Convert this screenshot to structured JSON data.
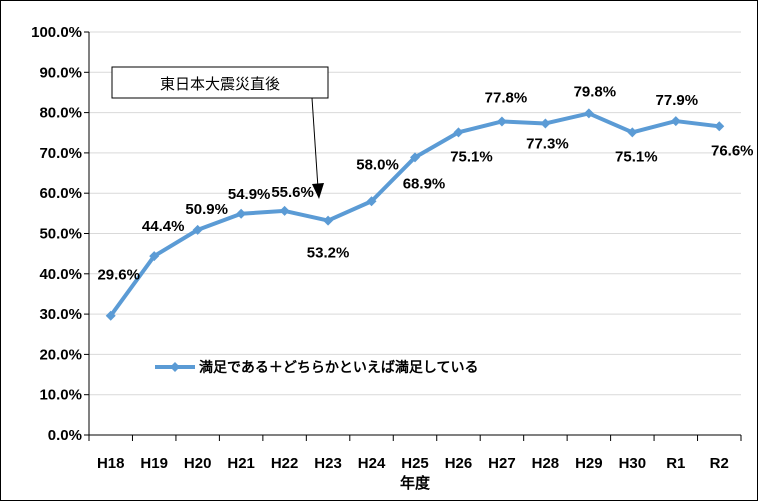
{
  "chart_data": {
    "type": "line",
    "categories": [
      "H18",
      "H19",
      "H20",
      "H21",
      "H22",
      "H23",
      "H24",
      "H25",
      "H26",
      "H27",
      "H28",
      "H29",
      "H30",
      "R1",
      "R2"
    ],
    "series": [
      {
        "name": "満足である＋どちらかといえば満足している",
        "values": [
          29.6,
          44.4,
          50.9,
          54.9,
          55.6,
          53.2,
          58.0,
          68.9,
          75.1,
          77.8,
          77.3,
          79.8,
          75.1,
          77.9,
          76.6
        ],
        "color": "#5b9bd5"
      }
    ],
    "data_labels": [
      "29.6%",
      "44.4%",
      "50.9%",
      "54.9%",
      "55.6%",
      "53.2%",
      "58.0%",
      "68.9%",
      "75.1%",
      "77.8%",
      "77.3%",
      "79.8%",
      "75.1%",
      "77.9%",
      "76.6%"
    ],
    "ylim": [
      0,
      100
    ],
    "yticks": [
      "0.0%",
      "10.0%",
      "20.0%",
      "30.0%",
      "40.0%",
      "50.0%",
      "60.0%",
      "70.0%",
      "80.0%",
      "90.0%",
      "100.0%"
    ],
    "xlabel": "年度",
    "ylabel": "",
    "title": "",
    "grid": true,
    "legend": "inside-lower",
    "annotation": {
      "text": "東日本大震災直後",
      "target_category": "H23"
    }
  }
}
